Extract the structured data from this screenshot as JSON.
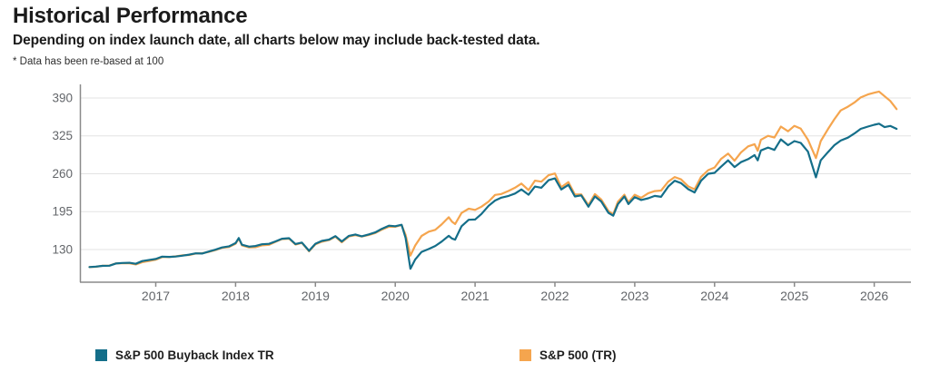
{
  "header": {
    "title": "Historical Performance",
    "subtitle": "Depending on index launch date, all charts below may include back-tested data.",
    "footnote": "* Data has been re-based at 100"
  },
  "colors": {
    "buyback_series": "#146e89",
    "sp500_series": "#f5a54e",
    "gridline": "#e3e3e3",
    "axis": "#8a8a8a",
    "tick_text": "#63666a"
  },
  "chart_data": {
    "type": "line",
    "title": "Historical Performance",
    "xlabel": "",
    "ylabel": "",
    "grid": "horizontal",
    "legend_position": "bottom",
    "y_ticks": [
      130,
      195,
      260,
      325,
      390
    ],
    "x_ticks": [
      2017,
      2018,
      2019,
      2020,
      2021,
      2022,
      2023,
      2024,
      2025,
      2026
    ],
    "ylim": [
      75,
      410
    ],
    "xlim": [
      2016.05,
      2026.55
    ],
    "x": [
      2016.17,
      2016.25,
      2016.33,
      2016.42,
      2016.5,
      2016.58,
      2016.67,
      2016.75,
      2016.83,
      2016.92,
      2017,
      2017.08,
      2017.17,
      2017.25,
      2017.33,
      2017.42,
      2017.5,
      2017.58,
      2017.67,
      2017.75,
      2017.83,
      2017.92,
      2018,
      2018.04,
      2018.08,
      2018.17,
      2018.25,
      2018.33,
      2018.42,
      2018.5,
      2018.58,
      2018.67,
      2018.75,
      2018.83,
      2018.92,
      2019,
      2019.08,
      2019.17,
      2019.25,
      2019.33,
      2019.42,
      2019.5,
      2019.58,
      2019.67,
      2019.75,
      2019.83,
      2019.92,
      2020,
      2020.08,
      2020.13,
      2020.19,
      2020.25,
      2020.33,
      2020.42,
      2020.5,
      2020.58,
      2020.67,
      2020.71,
      2020.75,
      2020.83,
      2020.92,
      2021,
      2021.08,
      2021.17,
      2021.25,
      2021.33,
      2021.42,
      2021.5,
      2021.58,
      2021.67,
      2021.75,
      2021.83,
      2021.92,
      2022,
      2022.08,
      2022.17,
      2022.25,
      2022.33,
      2022.42,
      2022.5,
      2022.58,
      2022.67,
      2022.73,
      2022.79,
      2022.87,
      2022.92,
      2023,
      2023.08,
      2023.17,
      2023.25,
      2023.33,
      2023.42,
      2023.5,
      2023.58,
      2023.67,
      2023.75,
      2023.83,
      2023.92,
      2024,
      2024.08,
      2024.17,
      2024.25,
      2024.33,
      2024.42,
      2024.5,
      2024.54,
      2024.58,
      2024.67,
      2024.75,
      2024.83,
      2024.92,
      2025,
      2025.08,
      2025.17,
      2025.27,
      2025.33,
      2025.42,
      2025.5,
      2025.58,
      2025.67,
      2025.75,
      2025.83,
      2025.92,
      2026,
      2026.06,
      2026.13,
      2026.2,
      2026.28
    ],
    "series": [
      {
        "name": "S&P 500 Buyback Index TR",
        "color": "#146e89",
        "values": [
          100,
          100.8,
          102,
          102.3,
          106,
          106.9,
          107.2,
          105.5,
          110.2,
          112.3,
          113.8,
          117.8,
          117.4,
          118,
          119.4,
          121.3,
          123.4,
          123.2,
          126.8,
          129.8,
          133.6,
          135.6,
          141,
          149.8,
          138.2,
          135,
          136,
          139,
          139.8,
          144,
          148.5,
          149.5,
          139.5,
          142,
          127.8,
          140,
          144.8,
          147,
          153,
          143.8,
          153.5,
          155.8,
          152.8,
          156,
          159.5,
          165.5,
          171,
          170,
          172.5,
          150,
          97,
          113,
          126,
          131,
          136,
          143.5,
          153.5,
          149,
          147,
          170,
          181,
          181.5,
          191,
          205,
          214,
          219,
          222,
          226,
          233,
          224,
          238,
          236,
          249,
          252,
          233,
          241,
          221,
          223,
          203.5,
          221,
          212.5,
          193,
          188,
          208,
          221,
          208,
          220,
          215,
          218,
          222,
          220.5,
          238,
          248,
          244,
          233.5,
          228,
          248,
          260,
          261.5,
          272,
          283,
          271.5,
          280,
          285,
          292,
          283,
          300,
          305,
          301,
          319,
          309,
          316,
          313,
          298,
          254,
          283,
          297,
          309,
          317,
          322,
          329,
          337,
          341,
          344,
          346,
          340,
          342,
          337
        ]
      },
      {
        "name": "S&P 500 (TR)",
        "color": "#f5a54e",
        "values": [
          100,
          100.4,
          102.2,
          102.5,
          106.2,
          106.4,
          106.4,
          104.4,
          108.3,
          110.4,
          112.5,
          117,
          117.1,
          118.3,
          120,
          120.7,
          123.2,
          123.6,
          126.1,
          129.1,
          133,
          134.5,
          140,
          149,
          137,
          133.5,
          134,
          137.2,
          138.1,
          143.2,
          147.9,
          148.7,
          138.5,
          141.4,
          127,
          139,
          143.4,
          146.2,
          152.1,
          142.4,
          152.4,
          154.6,
          152.2,
          155,
          158.4,
          164.1,
          169.1,
          169,
          172,
          155,
          119.5,
          137,
          153.3,
          160.6,
          163.8,
          173,
          185.5,
          178,
          173.7,
          192.7,
          200.1,
          198.1,
          203.5,
          212.4,
          223.8,
          225.3,
          230.6,
          236,
          243.2,
          231.9,
          248.1,
          246.4,
          257.5,
          260.5,
          237,
          245.7,
          224.3,
          224.7,
          206.1,
          225.1,
          216,
          196.1,
          190.5,
          212,
          224,
          211,
          224.1,
          218.7,
          226.7,
          230.2,
          231.2,
          246.5,
          254.4,
          250.4,
          238.4,
          233.4,
          254.7,
          266.3,
          270.8,
          285.2,
          294.5,
          282.4,
          296.4,
          307,
          310.7,
          299.5,
          318.3,
          325.1,
          322.1,
          341,
          332.9,
          342.2,
          337.3,
          318.4,
          287,
          316,
          336.4,
          353.6,
          368.7,
          375,
          382,
          391,
          396,
          399,
          401,
          393,
          385,
          371
        ]
      }
    ]
  }
}
